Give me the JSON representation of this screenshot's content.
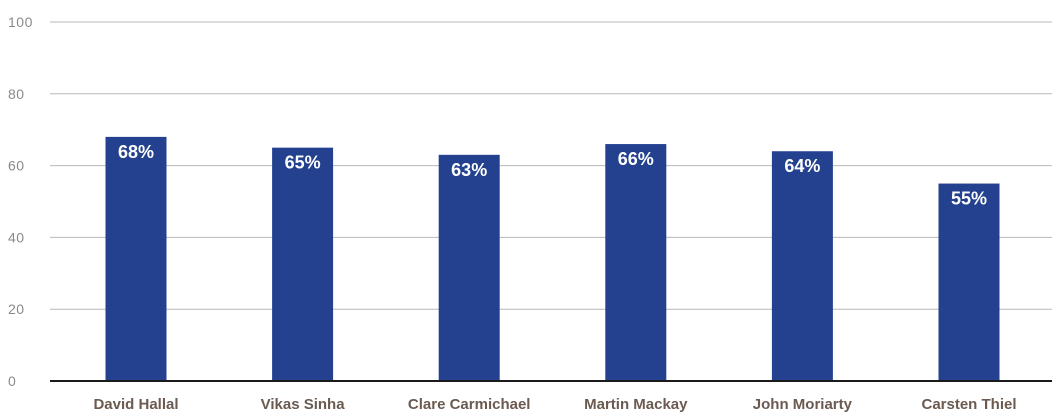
{
  "chart_data": {
    "type": "bar",
    "title": "",
    "xlabel": "",
    "ylabel": "",
    "categories": [
      "David Hallal",
      "Vikas Sinha",
      "Clare Carmichael",
      "Martin Mackay",
      "John Moriarty",
      "Carsten Thiel"
    ],
    "values": [
      68,
      65,
      63,
      66,
      64,
      55
    ],
    "data_labels": [
      "68%",
      "65%",
      "63%",
      "66%",
      "64%",
      "55%"
    ],
    "ylim": [
      0,
      100
    ],
    "yticks": [
      0,
      20,
      40,
      60,
      80,
      100
    ],
    "grid": true,
    "bar_color": "#23418f"
  }
}
